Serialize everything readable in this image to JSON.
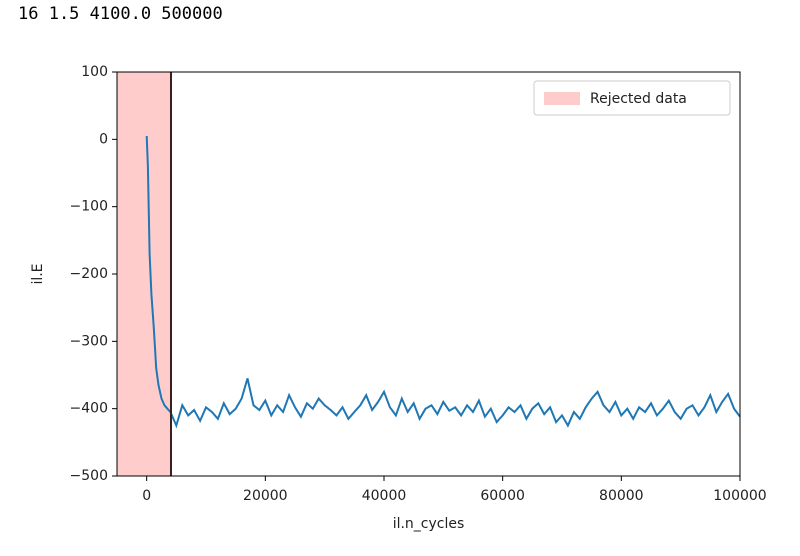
{
  "output_text": "16 1.5 4100.0 500000",
  "chart_data": {
    "type": "line",
    "xlabel": "il.n_cycles",
    "ylabel": "il.E",
    "xlim": [
      -5000,
      100000
    ],
    "ylim": [
      -500,
      100
    ],
    "xticks": [
      0,
      20000,
      40000,
      60000,
      80000,
      100000
    ],
    "yticks": [
      {
        "value": -500,
        "label": "−500"
      },
      {
        "value": -400,
        "label": "−400"
      },
      {
        "value": -300,
        "label": "−300"
      },
      {
        "value": -200,
        "label": "−200"
      },
      {
        "value": -100,
        "label": "−100"
      },
      0,
      100
    ],
    "legend": "upper right",
    "span": {
      "name": "Rejected data",
      "xmax": 4100,
      "color": "#ffcccc",
      "line_color": "#3b1f1f"
    },
    "series": [
      {
        "color": "#1f77b4",
        "x": [
          0,
          200,
          500,
          800,
          1200,
          1600,
          2000,
          2500,
          3000,
          3500,
          4000,
          5000,
          6000,
          7000,
          8000,
          9000,
          10000,
          11000,
          12000,
          13000,
          14000,
          15000,
          16000,
          17000,
          18000,
          19000,
          20000,
          21000,
          22000,
          23000,
          24000,
          25000,
          26000,
          27000,
          28000,
          29000,
          30000,
          31000,
          32000,
          33000,
          34000,
          35000,
          36000,
          37000,
          38000,
          39000,
          40000,
          41000,
          42000,
          43000,
          44000,
          45000,
          46000,
          47000,
          48000,
          49000,
          50000,
          51000,
          52000,
          53000,
          54000,
          55000,
          56000,
          57000,
          58000,
          59000,
          60000,
          61000,
          62000,
          63000,
          64000,
          65000,
          66000,
          67000,
          68000,
          69000,
          70000,
          71000,
          72000,
          73000,
          74000,
          75000,
          76000,
          77000,
          78000,
          79000,
          80000,
          81000,
          82000,
          83000,
          84000,
          85000,
          86000,
          87000,
          88000,
          89000,
          90000,
          91000,
          92000,
          93000,
          94000,
          95000,
          96000,
          97000,
          98000,
          99000,
          100000
        ],
        "values": [
          5,
          -40,
          -170,
          -230,
          -280,
          -340,
          -365,
          -385,
          -395,
          -400,
          -405,
          -425,
          -395,
          -410,
          -402,
          -418,
          -398,
          -405,
          -415,
          -392,
          -408,
          -400,
          -385,
          -355,
          -395,
          -402,
          -388,
          -410,
          -395,
          -405,
          -380,
          -398,
          -412,
          -392,
          -400,
          -385,
          -395,
          -402,
          -410,
          -398,
          -415,
          -405,
          -395,
          -380,
          -402,
          -390,
          -375,
          -398,
          -410,
          -385,
          -405,
          -392,
          -415,
          -400,
          -395,
          -408,
          -390,
          -403,
          -398,
          -410,
          -395,
          -405,
          -388,
          -412,
          -400,
          -420,
          -410,
          -398,
          -405,
          -395,
          -415,
          -400,
          -392,
          -408,
          -398,
          -420,
          -410,
          -425,
          -405,
          -415,
          -398,
          -385,
          -375,
          -395,
          -405,
          -390,
          -410,
          -400,
          -415,
          -398,
          -405,
          -392,
          -410,
          -400,
          -388,
          -405,
          -415,
          -400,
          -395,
          -410,
          -398,
          -380,
          -405,
          -390,
          -378,
          -400,
          -412
        ]
      }
    ]
  }
}
